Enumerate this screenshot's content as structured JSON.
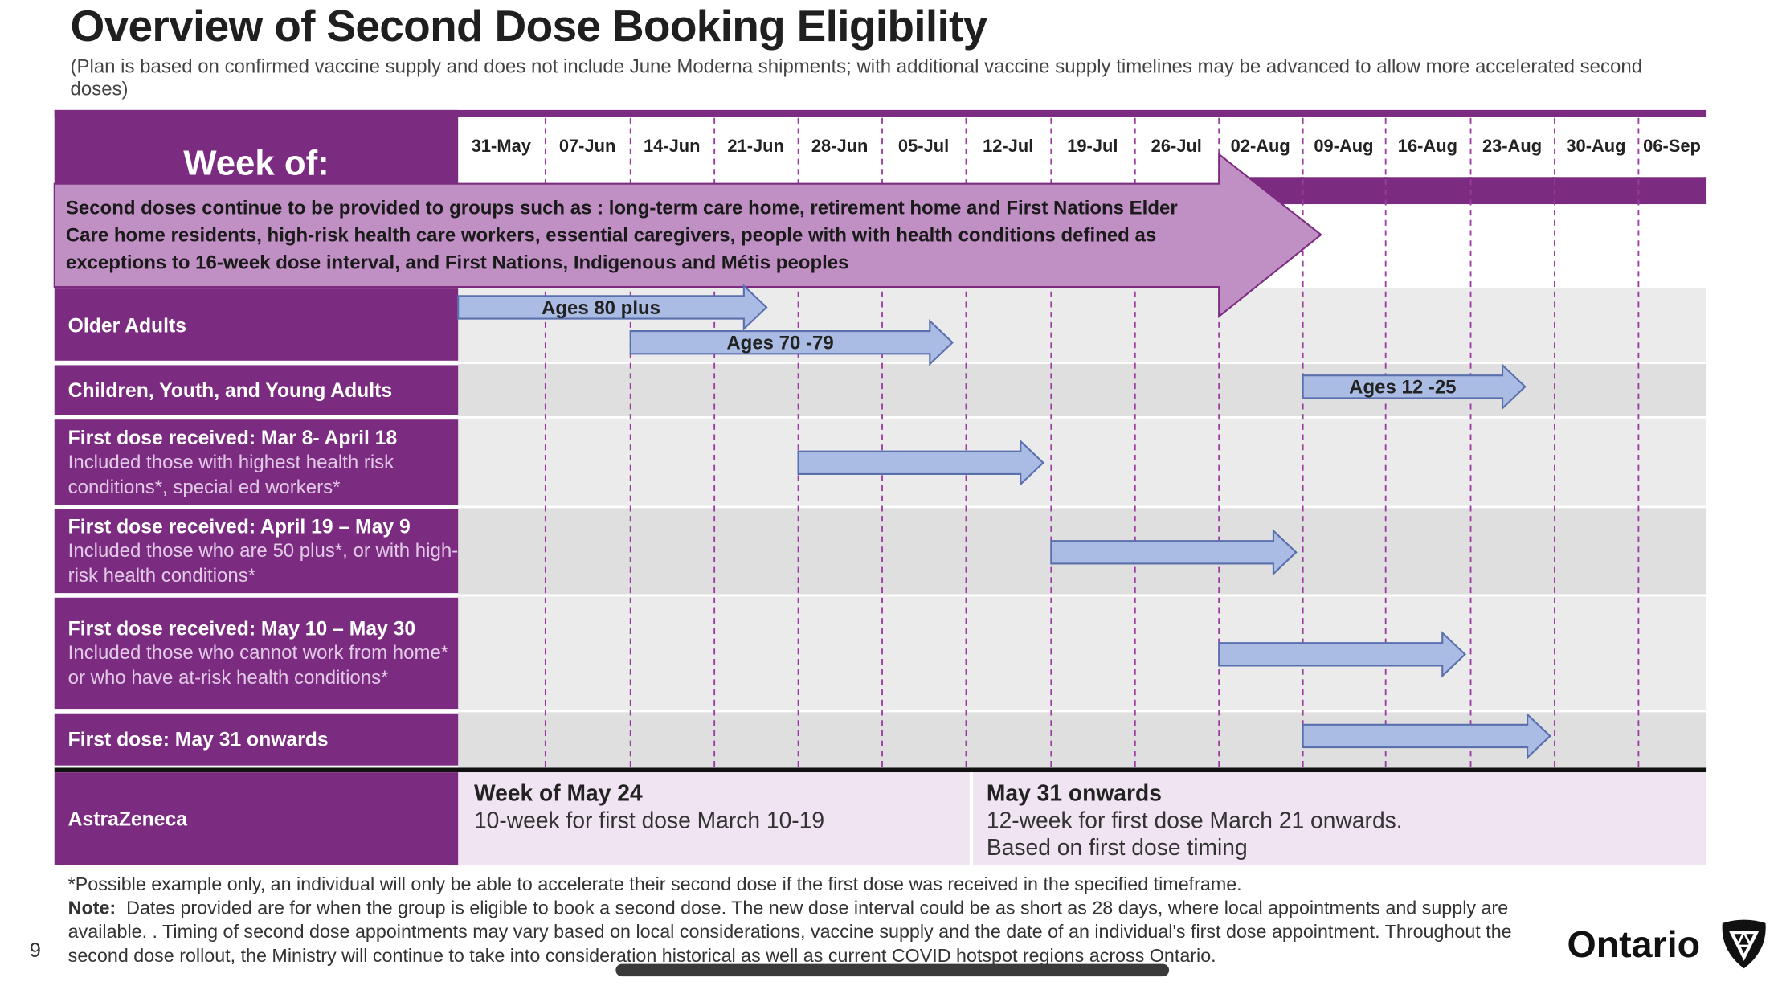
{
  "title": "Overview of Second Dose Booking Eligibility",
  "subtitle": "(Plan is based on confirmed vaccine supply and does not include June Moderna shipments; with additional vaccine supply timelines may be advanced to allow more accelerated second doses)",
  "week_of_label": "Week of:",
  "weeks": [
    "31-May",
    "07-Jun",
    "14-Jun",
    "21-Jun",
    "28-Jun",
    "05-Jul",
    "12-Jul",
    "19-Jul",
    "26-Jul",
    "02-Aug",
    "09-Aug",
    "16-Aug",
    "23-Aug",
    "30-Aug",
    "06-Sep"
  ],
  "notice": "Second doses continue to be provided to groups such as : long-term care home, retirement home and First Nations Elder Care home residents, high-risk health care workers, essential caregivers, people with with health conditions defined as exceptions to 16-week dose interval, and First Nations, Indigenous and Métis peoples",
  "rows": [
    {
      "title": "Older Adults",
      "sub": ""
    },
    {
      "title": "Children, Youth, and Young Adults",
      "sub": ""
    },
    {
      "title": "First dose received:  Mar 8- April 18",
      "sub": "Included those with highest health risk conditions*, special ed workers*"
    },
    {
      "title": "First dose received:  April 19 – May 9",
      "sub": "Included those who are 50 plus*, or with high-risk health conditions*"
    },
    {
      "title": "First dose received: May 10 – May 30",
      "sub": "Included those who cannot work from home* or who have at-risk health conditions*"
    },
    {
      "title": "First dose:  May 31 onwards",
      "sub": ""
    }
  ],
  "arrows": [
    {
      "label": "Ages 80 plus",
      "start_week": "31-May",
      "end_week": "21-Jun"
    },
    {
      "label": "Ages 70 -79",
      "start_week": "14-Jun",
      "end_week": "05-Jul"
    },
    {
      "label": "Ages 12 -25",
      "start_week": "09-Aug",
      "end_week": "23-Aug"
    },
    {
      "label": "",
      "start_week": "28-Jun",
      "end_week": "12-Jul"
    },
    {
      "label": "",
      "start_week": "19-Jul",
      "end_week": "02-Aug"
    },
    {
      "label": "",
      "start_week": "02-Aug",
      "end_week": "16-Aug"
    },
    {
      "label": "",
      "start_week": "09-Aug",
      "end_week": "23-Aug"
    }
  ],
  "astrazeneca": {
    "label": "AstraZeneca",
    "left_title": "Week of May 24",
    "left_text": "10-week for first dose March 10-19",
    "right_title": "May 31 onwards",
    "right_text_1": "12-week for first dose March 21 onwards.",
    "right_text_2": "Based on first dose timing"
  },
  "footnote": "*Possible example only, an individual will only be able to accelerate their second dose if the first dose was received in the specified timeframe.",
  "note_label": "Note:",
  "note_text": "Dates provided are for when the group is eligible to book a second dose. The new dose interval could be as short as 28 days, where local appointments and supply are available. . Timing of second dose appointments may vary based on local considerations, vaccine supply and the date of an individual's first dose appointment. Throughout the second dose rollout, the Ministry will continue to take into consideration historical as well as current COVID hotspot regions across Ontario.",
  "page_number": "9",
  "brand": "Ontario",
  "colors": {
    "purple": "#7c2c80",
    "light_purple_arrow": "#c08fc4",
    "arrow_fill": "#aabce3",
    "arrow_stroke": "#5a6fae",
    "az_bg": "#f1e4f2"
  }
}
